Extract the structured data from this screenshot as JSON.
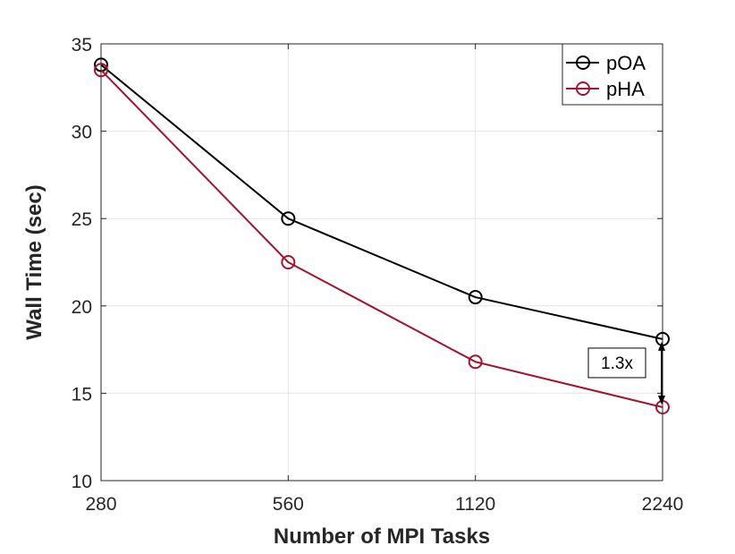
{
  "chart_data": {
    "type": "line",
    "title": "",
    "xlabel": "Number of MPI Tasks",
    "ylabel": "Wall Time (sec)",
    "categories": [
      "280",
      "560",
      "1120",
      "2240"
    ],
    "ylim": [
      10,
      35
    ],
    "yticks": [
      "10",
      "15",
      "20",
      "25",
      "30",
      "35"
    ],
    "grid": true,
    "legend_position": "top-right",
    "series": [
      {
        "name": "pOA",
        "color": "#000000",
        "values": [
          33.8,
          25.0,
          20.5,
          18.1
        ]
      },
      {
        "name": "pHA",
        "color": "#A2142F",
        "values": [
          33.5,
          22.5,
          16.8,
          14.2
        ]
      }
    ],
    "annotation": {
      "text": "1.3x",
      "category": "2240",
      "from_value": 18.1,
      "to_value": 14.2
    }
  }
}
